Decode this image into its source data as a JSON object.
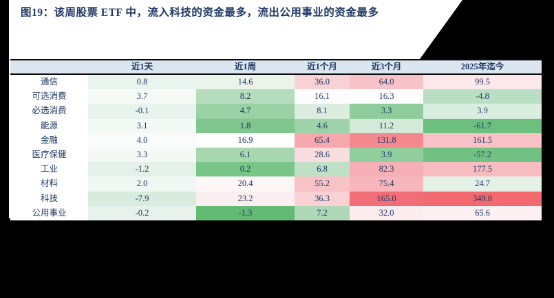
{
  "title": "图19：该周股票 ETF 中，流入科技的资金最多，流出公用事业的资金最多",
  "colors": {
    "canvas_bg": "#000000",
    "page_bg": "#ffffff",
    "header_bg": "#dce6f1",
    "text_navy": "#1f3864",
    "rule_black": "#0a0a0a",
    "scale_green_max": "#62ba73",
    "scale_red_max": "#f2696f"
  },
  "chart_data": {
    "type": "heatmap",
    "title": "图19：该周股票 ETF 中，流入科技的资金最多，流出公用事业的资金最多",
    "legend_position": "none",
    "grid": false,
    "columns": [
      "近1天",
      "近1周",
      "近1个月",
      "近3个月",
      "2025年迄今"
    ],
    "corner_label": "",
    "rows": [
      {
        "label": "通信",
        "values": [
          0.8,
          14.6,
          36.0,
          64.0,
          99.5
        ],
        "colors": [
          "#e9f4ee",
          "#eaf4eb",
          "#f8d3d6",
          "#f7c3c8",
          "#fce8ea"
        ]
      },
      {
        "label": "可选消费",
        "values": [
          3.7,
          8.2,
          16.1,
          16.3,
          -4.8
        ],
        "colors": [
          "#f6faf7",
          "#b5dcbc",
          "#fdfcfc",
          "#fefdfd",
          "#b9dfc3"
        ]
      },
      {
        "label": "必选消费",
        "values": [
          -0.1,
          4.7,
          8.1,
          3.3,
          3.9
        ],
        "colors": [
          "#e7f3ec",
          "#9ad1a5",
          "#dcede0",
          "#8ecd9b",
          "#d9eedf"
        ]
      },
      {
        "label": "能源",
        "values": [
          3.1,
          1.8,
          4.6,
          11.2,
          -61.7
        ],
        "colors": [
          "#f3f9f5",
          "#80c68e",
          "#9ed3a9",
          "#d3ead8",
          "#6dbf7e"
        ]
      },
      {
        "label": "金融",
        "values": [
          4.0,
          16.9,
          65.4,
          131.8,
          161.5
        ],
        "colors": [
          "#fafcfb",
          "#fdfdfd",
          "#f5a9ae",
          "#f4888f",
          "#f9c2c6"
        ]
      },
      {
        "label": "医疗保健",
        "values": [
          3.3,
          6.1,
          28.6,
          3.9,
          -57.2
        ],
        "colors": [
          "#f4f9f6",
          "#a7d6af",
          "#f9dee1",
          "#91ce9e",
          "#72c182"
        ]
      },
      {
        "label": "工业",
        "values": [
          -1.2,
          0.2,
          6.8,
          82.3,
          177.5
        ],
        "colors": [
          "#e3f1e9",
          "#79c487",
          "#bfe0c5",
          "#f6b0b5",
          "#f9bcc0"
        ]
      },
      {
        "label": "材料",
        "values": [
          2.0,
          20.4,
          55.2,
          75.4,
          24.7
        ],
        "colors": [
          "#eff7f2",
          "#fdf6f7",
          "#f7c3c7",
          "#f6b6bb",
          "#e3f1e7"
        ]
      },
      {
        "label": "科技",
        "values": [
          -7.9,
          23.2,
          36.3,
          165.0,
          349.8
        ],
        "colors": [
          "#d8ebdf",
          "#fbeef0",
          "#f8d2d5",
          "#f26e76",
          "#f2696f"
        ]
      },
      {
        "label": "公用事业",
        "values": [
          -0.2,
          -1.3,
          7.2,
          32.0,
          65.6
        ],
        "colors": [
          "#e6f2eb",
          "#62ba73",
          "#aed8b6",
          "#fcecee",
          "#fdf1f3"
        ]
      }
    ]
  }
}
